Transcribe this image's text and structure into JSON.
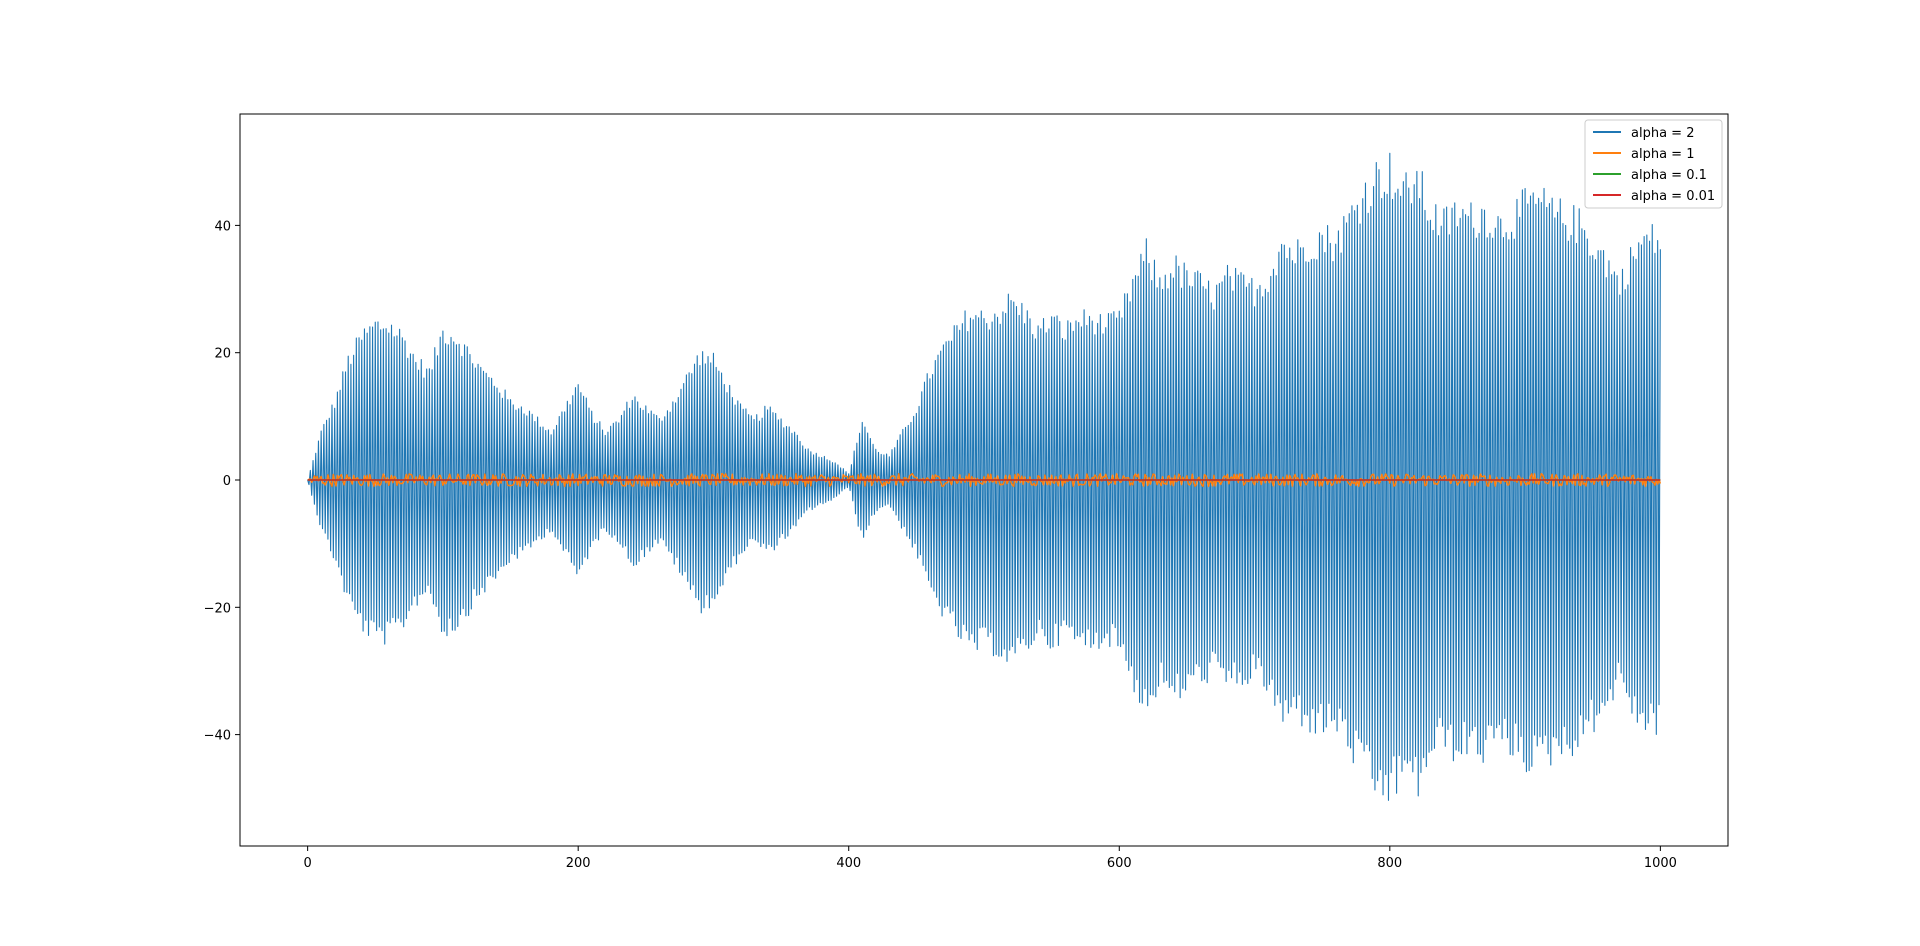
{
  "chart_data": {
    "type": "line",
    "title": "",
    "xlabel": "",
    "ylabel": "",
    "xlim": [
      -50,
      1050
    ],
    "ylim": [
      -57.5,
      57.5
    ],
    "x_ticks": [
      0,
      200,
      400,
      600,
      800,
      1000
    ],
    "x_tick_labels": [
      "0",
      "200",
      "400",
      "600",
      "800",
      "1000"
    ],
    "y_ticks": [
      -40,
      -20,
      0,
      20,
      40
    ],
    "y_tick_labels": [
      "−40",
      "−20",
      "0",
      "20",
      "40"
    ],
    "grid": false,
    "legend": "top-right",
    "series": [
      {
        "name": "alpha = 2",
        "color": "#1f77b4",
        "pattern": "alternating",
        "x_range": [
          0,
          1000
        ],
        "envelope": [
          [
            0,
            0
          ],
          [
            10,
            8
          ],
          [
            20,
            13
          ],
          [
            30,
            20
          ],
          [
            40,
            24
          ],
          [
            50,
            26
          ],
          [
            60,
            26
          ],
          [
            70,
            24
          ],
          [
            80,
            20
          ],
          [
            90,
            18
          ],
          [
            100,
            25
          ],
          [
            110,
            24
          ],
          [
            120,
            21
          ],
          [
            130,
            18
          ],
          [
            140,
            16
          ],
          [
            150,
            13
          ],
          [
            160,
            12
          ],
          [
            170,
            10
          ],
          [
            180,
            8
          ],
          [
            190,
            12
          ],
          [
            200,
            16
          ],
          [
            210,
            11
          ],
          [
            220,
            8
          ],
          [
            230,
            10
          ],
          [
            240,
            14
          ],
          [
            250,
            12
          ],
          [
            260,
            10
          ],
          [
            270,
            13
          ],
          [
            280,
            17
          ],
          [
            290,
            21
          ],
          [
            300,
            20
          ],
          [
            310,
            16
          ],
          [
            320,
            12
          ],
          [
            330,
            10
          ],
          [
            340,
            12
          ],
          [
            350,
            10
          ],
          [
            360,
            8
          ],
          [
            370,
            5
          ],
          [
            380,
            4
          ],
          [
            390,
            3
          ],
          [
            400,
            1
          ],
          [
            410,
            10
          ],
          [
            420,
            5
          ],
          [
            430,
            4
          ],
          [
            440,
            8
          ],
          [
            450,
            12
          ],
          [
            460,
            18
          ],
          [
            470,
            22
          ],
          [
            480,
            25
          ],
          [
            490,
            28
          ],
          [
            500,
            27
          ],
          [
            510,
            28
          ],
          [
            520,
            30
          ],
          [
            530,
            28
          ],
          [
            540,
            25
          ],
          [
            550,
            27
          ],
          [
            560,
            25
          ],
          [
            570,
            27
          ],
          [
            580,
            27
          ],
          [
            590,
            26
          ],
          [
            600,
            27
          ],
          [
            610,
            33
          ],
          [
            620,
            38
          ],
          [
            630,
            33
          ],
          [
            640,
            36
          ],
          [
            650,
            34
          ],
          [
            660,
            33
          ],
          [
            670,
            31
          ],
          [
            680,
            34
          ],
          [
            690,
            33
          ],
          [
            700,
            32
          ],
          [
            710,
            34
          ],
          [
            720,
            40
          ],
          [
            730,
            38
          ],
          [
            740,
            40
          ],
          [
            750,
            41
          ],
          [
            760,
            40
          ],
          [
            770,
            44
          ],
          [
            780,
            48
          ],
          [
            790,
            51
          ],
          [
            800,
            52
          ],
          [
            810,
            48
          ],
          [
            820,
            51
          ],
          [
            830,
            45
          ],
          [
            840,
            43
          ],
          [
            850,
            45
          ],
          [
            860,
            44
          ],
          [
            870,
            45
          ],
          [
            880,
            43
          ],
          [
            890,
            44
          ],
          [
            900,
            46
          ],
          [
            910,
            47
          ],
          [
            920,
            45
          ],
          [
            930,
            44
          ],
          [
            940,
            43
          ],
          [
            950,
            40
          ],
          [
            960,
            37
          ],
          [
            970,
            33
          ],
          [
            980,
            38
          ],
          [
            990,
            41
          ],
          [
            1000,
            40
          ]
        ]
      },
      {
        "name": "alpha = 1",
        "color": "#ff7f0e",
        "pattern": "noise",
        "x_range": [
          0,
          1000
        ],
        "amplitude": 1
      },
      {
        "name": "alpha = 0.1",
        "color": "#2ca02c",
        "pattern": "flat",
        "x_range": [
          0,
          1000
        ],
        "value": 0
      },
      {
        "name": "alpha = 0.01",
        "color": "#d62728",
        "pattern": "flat",
        "x_range": [
          0,
          1000
        ],
        "value": 0
      }
    ]
  }
}
